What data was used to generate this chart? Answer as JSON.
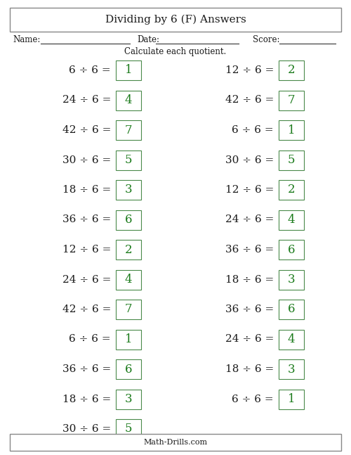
{
  "title": "Dividing by 6 (F) Answers",
  "instructions": "Calculate each quotient.",
  "footer": "Math-Drills.com",
  "name_label": "Name:",
  "date_label": "Date:",
  "score_label": "Score:",
  "left_col": [
    {
      "dividend": 6,
      "divisor": 6,
      "quotient": 1
    },
    {
      "dividend": 24,
      "divisor": 6,
      "quotient": 4
    },
    {
      "dividend": 42,
      "divisor": 6,
      "quotient": 7
    },
    {
      "dividend": 30,
      "divisor": 6,
      "quotient": 5
    },
    {
      "dividend": 18,
      "divisor": 6,
      "quotient": 3
    },
    {
      "dividend": 36,
      "divisor": 6,
      "quotient": 6
    },
    {
      "dividend": 12,
      "divisor": 6,
      "quotient": 2
    },
    {
      "dividend": 24,
      "divisor": 6,
      "quotient": 4
    },
    {
      "dividend": 42,
      "divisor": 6,
      "quotient": 7
    },
    {
      "dividend": 6,
      "divisor": 6,
      "quotient": 1
    },
    {
      "dividend": 36,
      "divisor": 6,
      "quotient": 6
    },
    {
      "dividend": 18,
      "divisor": 6,
      "quotient": 3
    },
    {
      "dividend": 30,
      "divisor": 6,
      "quotient": 5
    }
  ],
  "right_col": [
    {
      "dividend": 12,
      "divisor": 6,
      "quotient": 2
    },
    {
      "dividend": 42,
      "divisor": 6,
      "quotient": 7
    },
    {
      "dividend": 6,
      "divisor": 6,
      "quotient": 1
    },
    {
      "dividend": 30,
      "divisor": 6,
      "quotient": 5
    },
    {
      "dividend": 12,
      "divisor": 6,
      "quotient": 2
    },
    {
      "dividend": 24,
      "divisor": 6,
      "quotient": 4
    },
    {
      "dividend": 36,
      "divisor": 6,
      "quotient": 6
    },
    {
      "dividend": 18,
      "divisor": 6,
      "quotient": 3
    },
    {
      "dividend": 36,
      "divisor": 6,
      "quotient": 6
    },
    {
      "dividend": 24,
      "divisor": 6,
      "quotient": 4
    },
    {
      "dividend": 18,
      "divisor": 6,
      "quotient": 3
    },
    {
      "dividend": 6,
      "divisor": 6,
      "quotient": 1
    }
  ],
  "bg_color": "#ffffff",
  "text_color": "#1a1a1a",
  "answer_color": "#1a7a1a",
  "box_edge_color": "#4a8a4a",
  "title_fontsize": 11,
  "label_fontsize": 8.5,
  "problem_fontsize": 11,
  "answer_fontsize": 12,
  "footer_fontsize": 8,
  "instr_fontsize": 8.5
}
